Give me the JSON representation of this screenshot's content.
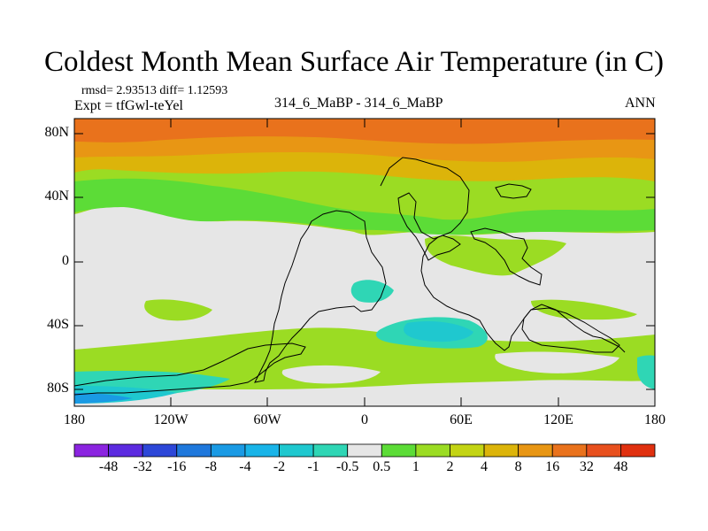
{
  "title": "Coldest Month Mean Surface Air Temperature (in C)",
  "stats": "rmsd= 2.93513 diff= 1.12593",
  "experiment": "Expt = tfGwl-teYel",
  "subtitle": "314_6_MaBP - 314_6_MaBP",
  "season": "ANN",
  "lat_labels": [
    "80N",
    "40N",
    "0",
    "40S",
    "80S"
  ],
  "lon_labels": [
    "180",
    "120W",
    "60W",
    "0",
    "60E",
    "120E",
    "180"
  ],
  "colorbar": {
    "labels": [
      "-48",
      "-32",
      "-16",
      "-8",
      "-4",
      "-2",
      "-1",
      "-0.5",
      "0.5",
      "1",
      "2",
      "4",
      "8",
      "16",
      "32",
      "48"
    ],
    "colors": [
      "#8b24e0",
      "#5c2be0",
      "#2d47d8",
      "#1f78dc",
      "#1a9ae4",
      "#19b4e8",
      "#1fc8cf",
      "#2fd6b5",
      "#e6e6e6",
      "#5cdc37",
      "#9bdc23",
      "#c3d414",
      "#dcb40a",
      "#e89614",
      "#e9721c",
      "#e8501e",
      "#e0300f"
    ]
  }
}
